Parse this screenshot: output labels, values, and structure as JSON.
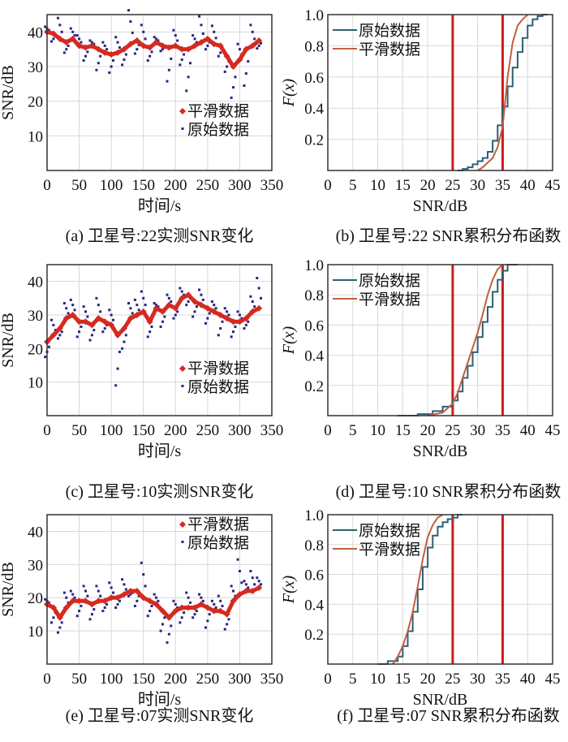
{
  "colors": {
    "raw_dot": "#2a2480",
    "smooth": "#d62a20",
    "cdf_raw": "#2e5f75",
    "cdf_smooth": "#c0603e",
    "vline": "#d01c1c",
    "grid": "#d8d8d8"
  },
  "chart_data": [
    {
      "type": "scatter",
      "id": "a",
      "caption": "(a) 卫星号:22实测SNR变化",
      "xlabel": "时间/s",
      "ylabel": "SNR/dB",
      "xlim": [
        0,
        350
      ],
      "ylim": [
        0,
        45
      ],
      "xticks": [
        0,
        50,
        100,
        150,
        200,
        250,
        300,
        350
      ],
      "yticks": [
        10,
        20,
        30,
        40
      ],
      "legend": [
        "平滑数据",
        "原始数据"
      ],
      "legend_position": "center-right",
      "grid": true,
      "x": [
        0,
        10,
        20,
        30,
        40,
        50,
        60,
        70,
        80,
        90,
        100,
        110,
        120,
        130,
        140,
        150,
        160,
        170,
        180,
        190,
        200,
        210,
        220,
        230,
        240,
        250,
        260,
        270,
        280,
        290,
        300,
        310,
        320,
        330
      ],
      "smooth": [
        40,
        39.5,
        38,
        37,
        38,
        36,
        35.5,
        36,
        35,
        34,
        33.5,
        34,
        35,
        36.5,
        37.5,
        36,
        35.5,
        37,
        36,
        35.5,
        36,
        35,
        35,
        36,
        37,
        38,
        36.5,
        36,
        33,
        30,
        32,
        35,
        36,
        37.5
      ],
      "raw": [
        41,
        38,
        42,
        35,
        40,
        38,
        33,
        37,
        31,
        36,
        30,
        37,
        32,
        43,
        35,
        40,
        33,
        38,
        35,
        29,
        39,
        32,
        27,
        38,
        42,
        36,
        40,
        34,
        30,
        24,
        35,
        28,
        40,
        36
      ]
    },
    {
      "type": "line",
      "id": "b",
      "caption": "(b) 卫星号:22 SNR累积分布函数",
      "xlabel": "SNR/dB",
      "ylabel": "F(x)",
      "xlim": [
        0,
        45
      ],
      "ylim": [
        0,
        1
      ],
      "xticks": [
        0,
        5,
        10,
        15,
        20,
        25,
        30,
        35,
        40,
        45
      ],
      "yticks": [
        "0.2",
        "0.4",
        "0.6",
        "0.8",
        "1.0"
      ],
      "legend": [
        "原始数据",
        "平滑数据"
      ],
      "legend_position": "top-left",
      "vlines": [
        25,
        35
      ],
      "grid": true,
      "raw": [
        [
          26,
          0
        ],
        [
          27,
          0.01
        ],
        [
          28,
          0.02
        ],
        [
          29,
          0.04
        ],
        [
          30,
          0.06
        ],
        [
          31,
          0.08
        ],
        [
          32,
          0.12
        ],
        [
          33,
          0.19
        ],
        [
          34,
          0.29
        ],
        [
          35,
          0.41
        ],
        [
          36,
          0.54
        ],
        [
          37,
          0.66
        ],
        [
          38,
          0.76
        ],
        [
          39,
          0.85
        ],
        [
          40,
          0.93
        ],
        [
          41,
          0.97
        ],
        [
          42,
          0.99
        ],
        [
          43,
          1
        ],
        [
          44,
          1
        ]
      ],
      "smooth": [
        [
          30,
          0
        ],
        [
          31,
          0.02
        ],
        [
          32,
          0.05
        ],
        [
          33,
          0.08
        ],
        [
          34,
          0.15
        ],
        [
          35,
          0.28
        ],
        [
          36,
          0.6
        ],
        [
          37,
          0.82
        ],
        [
          38,
          0.93
        ],
        [
          39,
          0.97
        ],
        [
          40,
          1
        ]
      ]
    },
    {
      "type": "scatter",
      "id": "c",
      "caption": "(c) 卫星号:10实测SNR变化",
      "xlabel": "时间/s",
      "ylabel": "SNR/dB",
      "xlim": [
        0,
        350
      ],
      "ylim": [
        0,
        45
      ],
      "xticks": [
        0,
        50,
        100,
        150,
        200,
        250,
        300,
        350
      ],
      "yticks": [
        10,
        20,
        30,
        40
      ],
      "legend": [
        "平滑数据",
        "原始数据"
      ],
      "legend_position": "bottom-right",
      "grid": true,
      "x": [
        0,
        10,
        20,
        30,
        40,
        50,
        60,
        70,
        80,
        90,
        100,
        110,
        120,
        130,
        140,
        150,
        160,
        170,
        180,
        190,
        200,
        210,
        220,
        230,
        240,
        250,
        260,
        270,
        280,
        290,
        300,
        310,
        320,
        330
      ],
      "smooth": [
        22,
        24,
        26,
        29,
        30,
        28,
        28,
        27,
        29,
        28,
        27,
        24,
        26,
        29,
        30,
        31,
        28,
        32,
        31,
        33,
        32,
        35,
        36,
        34,
        33,
        32,
        31,
        30,
        29,
        28,
        28,
        29,
        31,
        32
      ],
      "raw": [
        19,
        27,
        24,
        32,
        33,
        25,
        31,
        24,
        33,
        26,
        30,
        14,
        22,
        32,
        33,
        35,
        25,
        33,
        28,
        35,
        30,
        37,
        34,
        31,
        36,
        29,
        33,
        26,
        31,
        25,
        30,
        27,
        34,
        38
      ]
    },
    {
      "type": "line",
      "id": "d",
      "caption": "(d) 卫星号:10 SNR累积分布函数",
      "xlabel": "SNR/dB",
      "ylabel": "F(x)",
      "xlim": [
        0,
        45
      ],
      "ylim": [
        0,
        1
      ],
      "xticks": [
        0,
        5,
        10,
        15,
        20,
        25,
        30,
        35,
        40,
        45
      ],
      "yticks": [
        "0.2",
        "0.4",
        "0.6",
        "0.8",
        "1.0"
      ],
      "legend": [
        "原始数据",
        "平滑数据"
      ],
      "legend_position": "top-left",
      "vlines": [
        25,
        35
      ],
      "grid": true,
      "raw": [
        [
          14,
          0
        ],
        [
          18,
          0.01
        ],
        [
          21,
          0.03
        ],
        [
          23,
          0.06
        ],
        [
          25,
          0.1
        ],
        [
          26,
          0.16
        ],
        [
          27,
          0.25
        ],
        [
          28,
          0.33
        ],
        [
          29,
          0.42
        ],
        [
          30,
          0.52
        ],
        [
          31,
          0.62
        ],
        [
          32,
          0.72
        ],
        [
          33,
          0.82
        ],
        [
          34,
          0.9
        ],
        [
          35,
          0.96
        ],
        [
          36,
          1
        ],
        [
          38,
          1
        ]
      ],
      "smooth": [
        [
          20,
          0
        ],
        [
          23,
          0.02
        ],
        [
          25,
          0.08
        ],
        [
          26,
          0.15
        ],
        [
          27,
          0.25
        ],
        [
          28,
          0.35
        ],
        [
          29,
          0.45
        ],
        [
          30,
          0.55
        ],
        [
          31,
          0.67
        ],
        [
          32,
          0.8
        ],
        [
          33,
          0.9
        ],
        [
          34,
          0.97
        ],
        [
          35,
          1
        ]
      ]
    },
    {
      "type": "scatter",
      "id": "e",
      "caption": "(e) 卫星号:07实测SNR变化",
      "xlabel": "时间/s",
      "ylabel": "SNR/dB",
      "xlim": [
        0,
        350
      ],
      "ylim": [
        0,
        45
      ],
      "xticks": [
        0,
        50,
        100,
        150,
        200,
        250,
        300,
        350
      ],
      "yticks": [
        10,
        20,
        30,
        40
      ],
      "legend": [
        "平滑数据",
        "原始数据"
      ],
      "legend_position": "top-right",
      "grid": true,
      "x": [
        0,
        10,
        20,
        30,
        40,
        50,
        60,
        70,
        80,
        90,
        100,
        110,
        120,
        130,
        140,
        150,
        160,
        170,
        180,
        190,
        200,
        210,
        220,
        230,
        240,
        250,
        260,
        270,
        280,
        290,
        300,
        310,
        320,
        330
      ],
      "smooth": [
        18,
        17,
        14,
        17,
        19,
        19,
        19,
        18,
        19,
        19,
        20,
        20,
        21,
        22,
        22,
        20,
        19,
        18,
        16,
        14,
        16,
        17,
        17,
        17,
        18,
        17,
        16,
        16,
        15,
        19,
        21,
        22,
        22,
        23
      ],
      "raw": [
        19,
        14,
        11,
        20,
        21,
        16,
        22,
        15,
        22,
        17,
        23,
        18,
        24,
        21,
        19,
        27,
        16,
        20,
        12,
        9,
        18,
        14,
        20,
        15,
        20,
        13,
        18,
        19,
        12,
        22,
        28,
        24,
        26,
        25
      ]
    },
    {
      "type": "line",
      "id": "f",
      "caption": "(f) 卫星号:07 SNR累积分布函数",
      "xlabel": "SNR/dB",
      "ylabel": "F(x)",
      "xlim": [
        0,
        45
      ],
      "ylim": [
        0,
        1
      ],
      "xticks": [
        0,
        5,
        10,
        15,
        20,
        25,
        30,
        35,
        40,
        45
      ],
      "yticks": [
        "0.2",
        "0.4",
        "0.6",
        "0.8",
        "1.0"
      ],
      "legend": [
        "原始数据",
        "平滑数据"
      ],
      "legend_position": "top-left",
      "vlines": [
        25,
        35
      ],
      "grid": true,
      "raw": [
        [
          10,
          0
        ],
        [
          12,
          0.02
        ],
        [
          14,
          0.05
        ],
        [
          15,
          0.12
        ],
        [
          16,
          0.22
        ],
        [
          17,
          0.35
        ],
        [
          18,
          0.5
        ],
        [
          19,
          0.65
        ],
        [
          20,
          0.78
        ],
        [
          21,
          0.86
        ],
        [
          22,
          0.92
        ],
        [
          23,
          0.95
        ],
        [
          24,
          0.97
        ],
        [
          25,
          0.98
        ],
        [
          26,
          1
        ],
        [
          27,
          1
        ]
      ],
      "smooth": [
        [
          13,
          0
        ],
        [
          14,
          0.05
        ],
        [
          15,
          0.12
        ],
        [
          16,
          0.22
        ],
        [
          17,
          0.35
        ],
        [
          18,
          0.52
        ],
        [
          19,
          0.7
        ],
        [
          20,
          0.85
        ],
        [
          21,
          0.93
        ],
        [
          22,
          0.98
        ],
        [
          23,
          1
        ]
      ]
    }
  ]
}
